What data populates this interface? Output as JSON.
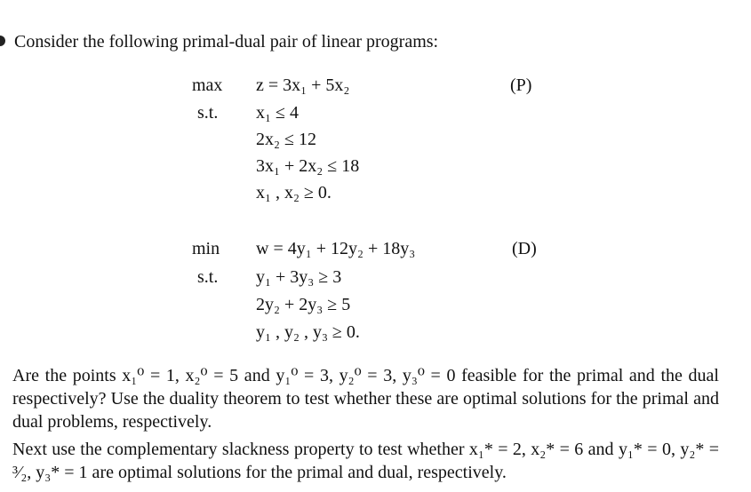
{
  "intro": "Consider the following primal-dual pair of linear programs:",
  "primal": {
    "objective_label": "max",
    "constraints_label": "s.t.",
    "tag": "(P)",
    "lines": [
      "z = 3x₁ + 5x₂",
      "x₁ ≤ 4",
      "2x₂ ≤ 12",
      "3x₁ + 2x₂ ≤ 18",
      "x₁ , x₂ ≥ 0."
    ]
  },
  "dual": {
    "objective_label": "min",
    "constraints_label": "s.t.",
    "tag": "(D)",
    "lines": [
      "w = 4y₁ + 12y₂ + 18y₃",
      "y₁ + 3y₃ ≥ 3",
      "2y₂ + 2y₃ ≥ 5",
      "y₁ , y₂ , y₃ ≥ 0."
    ]
  },
  "paragraphs": [
    "Are the points x₁⁰ = 1, x₂⁰ = 5 and y₁⁰ = 3, y₂⁰ = 3, y₃⁰ = 0 feasible for the primal and the dual respectively? Use the duality theorem to test whether these are optimal solutions for the primal and dual problems, respectively.",
    "Next use the complementary slackness property to test whether x₁* = 2, x₂* = 6 and y₁* = 0, y₂* = ³⁄₂, y₃* = 1 are optimal solutions for the primal and dual, respectively."
  ]
}
